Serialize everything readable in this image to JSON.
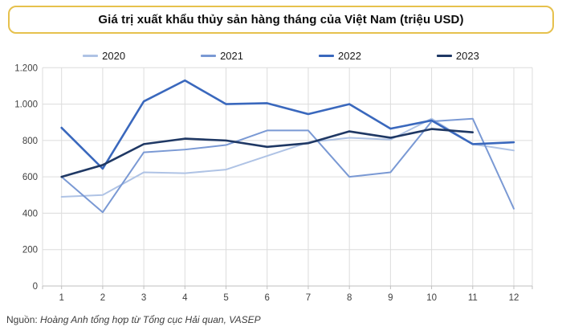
{
  "header": {
    "title": "Giá trị xuất khẩu thủy sản hàng tháng của Việt Nam (triệu USD)"
  },
  "source": {
    "prefix": "Nguồn: ",
    "text": "Hoàng Anh tổng hợp từ Tổng cục Hải quan, VASEP"
  },
  "colors": {
    "title_border": "#E6C14D",
    "grid": "#DCDCDC",
    "axis": "#BFBFBF",
    "tick_label": "#404040"
  },
  "chart_data": {
    "type": "line",
    "title": "Giá trị xuất khẩu thủy sản hàng tháng của Việt Nam (triệu USD)",
    "xlabel": "",
    "ylabel": "",
    "x": [
      1,
      2,
      3,
      4,
      5,
      6,
      7,
      8,
      9,
      10,
      11,
      12
    ],
    "x_tick_labels": [
      "1",
      "2",
      "3",
      "4",
      "5",
      "6",
      "7",
      "8",
      "9",
      "10",
      "11",
      "12"
    ],
    "ylim": [
      0,
      1200
    ],
    "ytick_step": 200,
    "ytick_labels": [
      "0",
      "200",
      "400",
      "600",
      "800",
      "1.000",
      "1.200"
    ],
    "grid": true,
    "legend_position": "top",
    "series": [
      {
        "name": "2020",
        "color": "#AFC3E5",
        "width": 2,
        "values": [
          490,
          500,
          625,
          620,
          640,
          715,
          790,
          815,
          805,
          920,
          780,
          745
        ]
      },
      {
        "name": "2021",
        "color": "#7A99D4",
        "width": 2,
        "values": [
          600,
          405,
          735,
          750,
          775,
          855,
          855,
          600,
          625,
          905,
          920,
          425
        ]
      },
      {
        "name": "2022",
        "color": "#3A68BD",
        "width": 2.6,
        "values": [
          870,
          645,
          1015,
          1130,
          1000,
          1005,
          945,
          1000,
          865,
          910,
          780,
          790
        ]
      },
      {
        "name": "2023",
        "color": "#1F3864",
        "width": 2.6,
        "values": [
          600,
          665,
          780,
          810,
          800,
          765,
          785,
          850,
          815,
          863,
          845,
          null
        ]
      }
    ]
  }
}
